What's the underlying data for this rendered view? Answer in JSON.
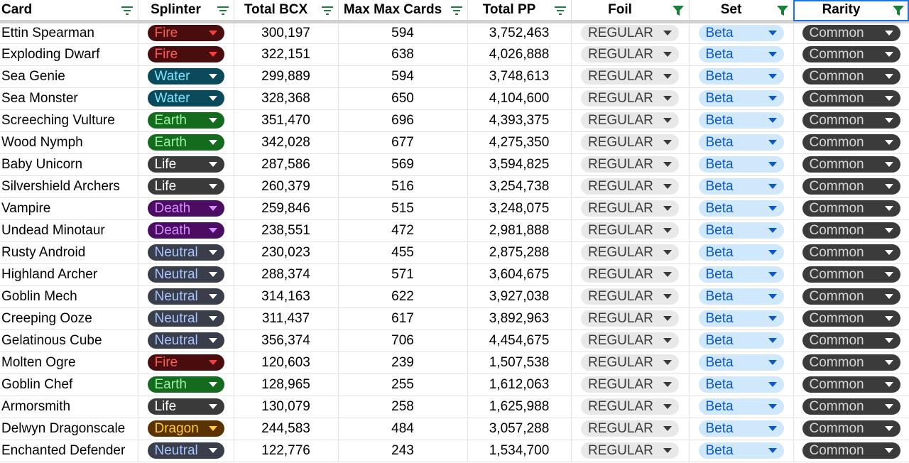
{
  "columns": [
    {
      "label": "Card",
      "filter": "filter-lines"
    },
    {
      "label": "Splinter",
      "filter": "filter-lines"
    },
    {
      "label": "Total BCX",
      "filter": "filter-lines"
    },
    {
      "label": "Max Max Cards",
      "filter": "filter-lines"
    },
    {
      "label": "Total PP",
      "filter": "filter-lines"
    },
    {
      "label": "Foil",
      "filter": "filter-funnel"
    },
    {
      "label": "Set",
      "filter": "filter-funnel"
    },
    {
      "label": "Rarity",
      "filter": "filter-funnel"
    }
  ],
  "colors": {
    "filter_icon": "#188038",
    "Fire": {
      "bg": "#4a0d0d",
      "fg": "#ff5b5b",
      "arrow": "#ff3b3b"
    },
    "Water": {
      "bg": "#0a4a5a",
      "fg": "#7fe4ff",
      "arrow": "#ffffff"
    },
    "Earth": {
      "bg": "#146b1e",
      "fg": "#9cf0a2",
      "arrow": "#ffffff"
    },
    "Life": {
      "bg": "#3a3a3a",
      "fg": "#ffffff",
      "arrow": "#ffffff"
    },
    "Death": {
      "bg": "#4a0d62",
      "fg": "#d68cff",
      "arrow": "#d68cff"
    },
    "Neutral": {
      "bg": "#3a3d4a",
      "fg": "#a8c4ff",
      "arrow": "#ffffff"
    },
    "Dragon": {
      "bg": "#5a3300",
      "fg": "#ffcc40",
      "arrow": "#ffcc40"
    }
  },
  "rows": [
    {
      "card": "Ettin Spearman",
      "splinter": "Fire",
      "bcx": "300,197",
      "max": "594",
      "pp": "3,752,463",
      "foil": "REGULAR",
      "set": "Beta",
      "rarity": "Common"
    },
    {
      "card": "Exploding Dwarf",
      "splinter": "Fire",
      "bcx": "322,151",
      "max": "638",
      "pp": "4,026,888",
      "foil": "REGULAR",
      "set": "Beta",
      "rarity": "Common"
    },
    {
      "card": "Sea Genie",
      "splinter": "Water",
      "bcx": "299,889",
      "max": "594",
      "pp": "3,748,613",
      "foil": "REGULAR",
      "set": "Beta",
      "rarity": "Common"
    },
    {
      "card": "Sea Monster",
      "splinter": "Water",
      "bcx": "328,368",
      "max": "650",
      "pp": "4,104,600",
      "foil": "REGULAR",
      "set": "Beta",
      "rarity": "Common"
    },
    {
      "card": "Screeching Vulture",
      "splinter": "Earth",
      "bcx": "351,470",
      "max": "696",
      "pp": "4,393,375",
      "foil": "REGULAR",
      "set": "Beta",
      "rarity": "Common"
    },
    {
      "card": "Wood Nymph",
      "splinter": "Earth",
      "bcx": "342,028",
      "max": "677",
      "pp": "4,275,350",
      "foil": "REGULAR",
      "set": "Beta",
      "rarity": "Common"
    },
    {
      "card": "Baby Unicorn",
      "splinter": "Life",
      "bcx": "287,586",
      "max": "569",
      "pp": "3,594,825",
      "foil": "REGULAR",
      "set": "Beta",
      "rarity": "Common"
    },
    {
      "card": "Silvershield Archers",
      "splinter": "Life",
      "bcx": "260,379",
      "max": "516",
      "pp": "3,254,738",
      "foil": "REGULAR",
      "set": "Beta",
      "rarity": "Common"
    },
    {
      "card": "Vampire",
      "splinter": "Death",
      "bcx": "259,846",
      "max": "515",
      "pp": "3,248,075",
      "foil": "REGULAR",
      "set": "Beta",
      "rarity": "Common"
    },
    {
      "card": "Undead Minotaur",
      "splinter": "Death",
      "bcx": "238,551",
      "max": "472",
      "pp": "2,981,888",
      "foil": "REGULAR",
      "set": "Beta",
      "rarity": "Common"
    },
    {
      "card": "Rusty Android",
      "splinter": "Neutral",
      "bcx": "230,023",
      "max": "455",
      "pp": "2,875,288",
      "foil": "REGULAR",
      "set": "Beta",
      "rarity": "Common"
    },
    {
      "card": "Highland Archer",
      "splinter": "Neutral",
      "bcx": "288,374",
      "max": "571",
      "pp": "3,604,675",
      "foil": "REGULAR",
      "set": "Beta",
      "rarity": "Common"
    },
    {
      "card": "Goblin Mech",
      "splinter": "Neutral",
      "bcx": "314,163",
      "max": "622",
      "pp": "3,927,038",
      "foil": "REGULAR",
      "set": "Beta",
      "rarity": "Common"
    },
    {
      "card": "Creeping Ooze",
      "splinter": "Neutral",
      "bcx": "311,437",
      "max": "617",
      "pp": "3,892,963",
      "foil": "REGULAR",
      "set": "Beta",
      "rarity": "Common"
    },
    {
      "card": "Gelatinous Cube",
      "splinter": "Neutral",
      "bcx": "356,374",
      "max": "706",
      "pp": "4,454,675",
      "foil": "REGULAR",
      "set": "Beta",
      "rarity": "Common"
    },
    {
      "card": "Molten Ogre",
      "splinter": "Fire",
      "bcx": "120,603",
      "max": "239",
      "pp": "1,507,538",
      "foil": "REGULAR",
      "set": "Beta",
      "rarity": "Common"
    },
    {
      "card": "Goblin Chef",
      "splinter": "Earth",
      "bcx": "128,965",
      "max": "255",
      "pp": "1,612,063",
      "foil": "REGULAR",
      "set": "Beta",
      "rarity": "Common"
    },
    {
      "card": "Armorsmith",
      "splinter": "Life",
      "bcx": "130,079",
      "max": "258",
      "pp": "1,625,988",
      "foil": "REGULAR",
      "set": "Beta",
      "rarity": "Common"
    },
    {
      "card": "Delwyn Dragonscale",
      "splinter": "Dragon",
      "bcx": "244,583",
      "max": "484",
      "pp": "3,057,288",
      "foil": "REGULAR",
      "set": "Beta",
      "rarity": "Common"
    },
    {
      "card": "Enchanted Defender",
      "splinter": "Neutral",
      "bcx": "122,776",
      "max": "243",
      "pp": "1,534,700",
      "foil": "REGULAR",
      "set": "Beta",
      "rarity": "Common"
    }
  ]
}
